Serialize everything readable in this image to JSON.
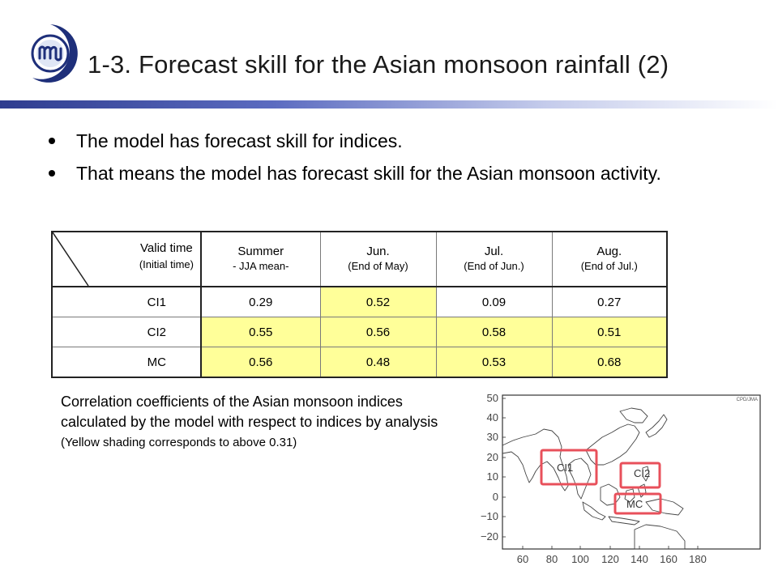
{
  "title": "1-3. Forecast skill for the Asian monsoon rainfall (2)",
  "bullets": [
    "The model has forecast skill for indices.",
    "That means the model has forecast skill for the Asian monsoon activity."
  ],
  "table": {
    "corner": {
      "top": "Valid time",
      "bottom": "(Initial time)"
    },
    "headers": [
      {
        "top": "Summer",
        "bottom": "- JJA mean-"
      },
      {
        "top": "Jun.",
        "bottom": "(End of May)"
      },
      {
        "top": "Jul.",
        "bottom": "(End of Jun.)"
      },
      {
        "top": "Aug.",
        "bottom": "(End of Jul.)"
      }
    ],
    "rows": [
      {
        "label": "CI1",
        "cells": [
          "0.29",
          "0.52",
          "0.09",
          "0.27"
        ],
        "highlight": [
          false,
          true,
          false,
          false
        ]
      },
      {
        "label": "CI2",
        "cells": [
          "0.55",
          "0.56",
          "0.58",
          "0.51"
        ],
        "highlight": [
          true,
          true,
          true,
          true
        ]
      },
      {
        "label": "MC",
        "cells": [
          "0.56",
          "0.48",
          "0.53",
          "0.68"
        ],
        "highlight": [
          true,
          true,
          true,
          true
        ]
      }
    ]
  },
  "caption": {
    "text": "Correlation coefficients of the Asian monsoon indices calculated by the model with respect to indices by analysis",
    "note": "(Yellow shading corresponds to above 0.31)"
  },
  "map": {
    "credit": "CPD/JMA",
    "y_ticks": [
      "50",
      "40",
      "30",
      "20",
      "10",
      "0",
      "−10",
      "−20"
    ],
    "x_ticks": [
      "60",
      "80",
      "100",
      "120",
      "140",
      "160",
      "180"
    ],
    "regions": [
      "CI1",
      "CI2",
      "MC"
    ],
    "box_color": "#e8505b",
    "highlight_color": "#ffff99"
  }
}
